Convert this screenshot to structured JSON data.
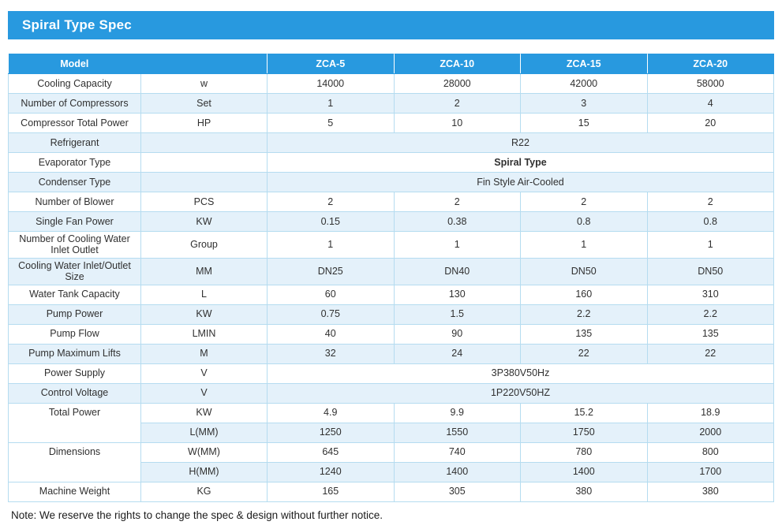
{
  "page_title": "Spiral Type Spec",
  "colors": {
    "accent": "#2899df",
    "row_alt": "#e4f1fa",
    "border": "#b5dcf0"
  },
  "table": {
    "header": {
      "model_label": "Model",
      "columns": [
        "ZCA-5",
        "ZCA-10",
        "ZCA-15",
        "ZCA-20"
      ]
    },
    "rows": [
      {
        "label": "Cooling Capacity",
        "unit": "w",
        "values": [
          "14000",
          "28000",
          "42000",
          "58000"
        ]
      },
      {
        "label": "Number of Compressors",
        "unit": "Set",
        "values": [
          "1",
          "2",
          "3",
          "4"
        ]
      },
      {
        "label": "Compressor Total Power",
        "unit": "HP",
        "values": [
          "5",
          "10",
          "15",
          "20"
        ]
      },
      {
        "label": "Refrigerant",
        "unit": "",
        "merged_value": "R22"
      },
      {
        "label": "Evaporator Type",
        "unit": "",
        "merged_value": "Spiral Type"
      },
      {
        "label": "Condenser Type",
        "unit": "",
        "merged_value": "Fin Style Air-Cooled"
      },
      {
        "label": "Number of Blower",
        "unit": "PCS",
        "values": [
          "2",
          "2",
          "2",
          "2"
        ]
      },
      {
        "label": "Single Fan Power",
        "unit": "KW",
        "values": [
          "0.15",
          "0.38",
          "0.8",
          "0.8"
        ]
      },
      {
        "label": "Number of Cooling Water Inlet Outlet",
        "unit": "Group",
        "values": [
          "1",
          "1",
          "1",
          "1"
        ]
      },
      {
        "label": "Cooling Water Inlet/Outlet Size",
        "unit": "MM",
        "values": [
          "DN25",
          "DN40",
          "DN50",
          "DN50"
        ]
      },
      {
        "label": "Water Tank Capacity",
        "unit": "L",
        "values": [
          "60",
          "130",
          "160",
          "310"
        ]
      },
      {
        "label": "Pump Power",
        "unit": "KW",
        "values": [
          "0.75",
          "1.5",
          "2.2",
          "2.2"
        ]
      },
      {
        "label": "Pump Flow",
        "unit": "LMIN",
        "values": [
          "40",
          "90",
          "135",
          "135"
        ]
      },
      {
        "label": "Pump Maximum Lifts",
        "unit": "M",
        "values": [
          "32",
          "24",
          "22",
          "22"
        ]
      },
      {
        "label": "Power Supply",
        "unit": "V",
        "merged_value": "3P380V50Hz"
      },
      {
        "label": "Control Voltage",
        "unit": "V",
        "merged_value": "1P220V50HZ"
      },
      {
        "label": "Total Power",
        "unit": "KW",
        "values": [
          "4.9",
          "9.9",
          "15.2",
          "18.9"
        ]
      },
      {
        "label": "",
        "unit": "L(MM)",
        "values": [
          "1250",
          "1550",
          "1750",
          "2000"
        ]
      },
      {
        "label": "Dimensions",
        "unit": "W(MM)",
        "values": [
          "645",
          "740",
          "780",
          "800"
        ]
      },
      {
        "label": "",
        "unit": "H(MM)",
        "values": [
          "1240",
          "1400",
          "1400",
          "1700"
        ]
      },
      {
        "label": "Machine Weight",
        "unit": "KG",
        "values": [
          "165",
          "305",
          "380",
          "380"
        ]
      }
    ]
  },
  "note": "Note: We reserve the rights to change the spec & design without further notice."
}
